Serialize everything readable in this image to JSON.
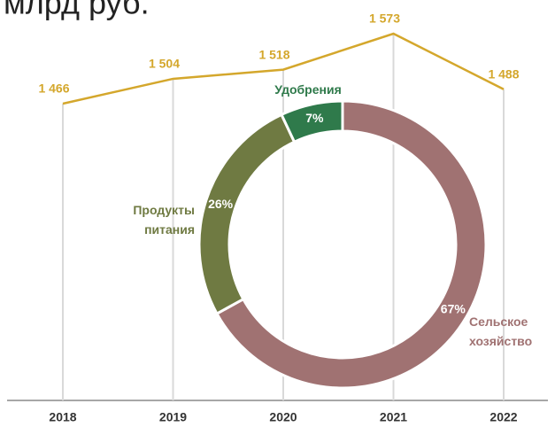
{
  "chart_data": [
    {
      "type": "line",
      "title": "млрд руб.",
      "categories": [
        "2018",
        "2019",
        "2020",
        "2021",
        "2022"
      ],
      "values": [
        1466,
        1504,
        1518,
        1573,
        1488
      ],
      "value_labels": [
        "1 466",
        "1 504",
        "1 518",
        "1 573",
        "1 488"
      ],
      "color": "#d4a72c",
      "grid": true
    },
    {
      "type": "pie",
      "categories": [
        "Сельское хозяйство",
        "Продукты питания",
        "Удобрения"
      ],
      "values": [
        67,
        26,
        7
      ],
      "value_labels": [
        "67%",
        "26%",
        "7%"
      ],
      "colors": [
        "#a07272",
        "#6f7a42",
        "#2f7a4b"
      ]
    }
  ]
}
